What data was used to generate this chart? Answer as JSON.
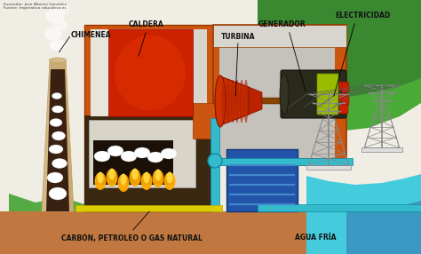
{
  "title_line1": "Ilustrador: José Alberto González",
  "title_line2": "Fuente: Imperativo educativo.es",
  "labels": {
    "chimenea": "CHIMENEA",
    "caldera": "CALDERA",
    "turbina": "TURBINA",
    "generador": "GENERADOR",
    "electricidad": "ELECTRICIDAD",
    "carbon": "CARBÓN, PETROLEO O GAS NATURAL",
    "agua_fria": "AGUA FRÍA"
  },
  "colors": {
    "background": "#f0ede5",
    "ground_brown": "#c07840",
    "green_hill": "#4aaa38",
    "green_hill_dark": "#3a8830",
    "water_cyan": "#44ccdd",
    "water_blue": "#3366aa",
    "chimney_body": "#d4b888",
    "chimney_dark": "#c0a060",
    "chimney_inside_dark": "#3a2010",
    "boiler_orange": "#cc5510",
    "boiler_gray": "#c0bbb5",
    "boiler_red": "#cc2200",
    "boiler_light_gray": "#d8d5ce",
    "furnace_dark": "#3a2810",
    "furnace_inner": "#1a1008",
    "flame_orange": "#ffaa00",
    "flame_yellow": "#ffdd44",
    "turbine_room_gray": "#c5c2bb",
    "turbine_red": "#cc3300",
    "turbine_dark_red": "#881100",
    "generator_dark": "#2a2a1a",
    "generator_green": "#99bb00",
    "generator_red_stripe": "#cc2200",
    "pipe_blue": "#33bbcc",
    "pipe_blue_dark": "#1188aa",
    "pipe_yellow": "#ddcc00",
    "condenser_blue": "#2255aa",
    "condenser_line": "#4488cc",
    "text_black": "#111111",
    "tower_gray": "#888888",
    "smoke_gray": "#cccccc",
    "white_blobs": "#ffffff",
    "grass_green": "#55aa44"
  }
}
